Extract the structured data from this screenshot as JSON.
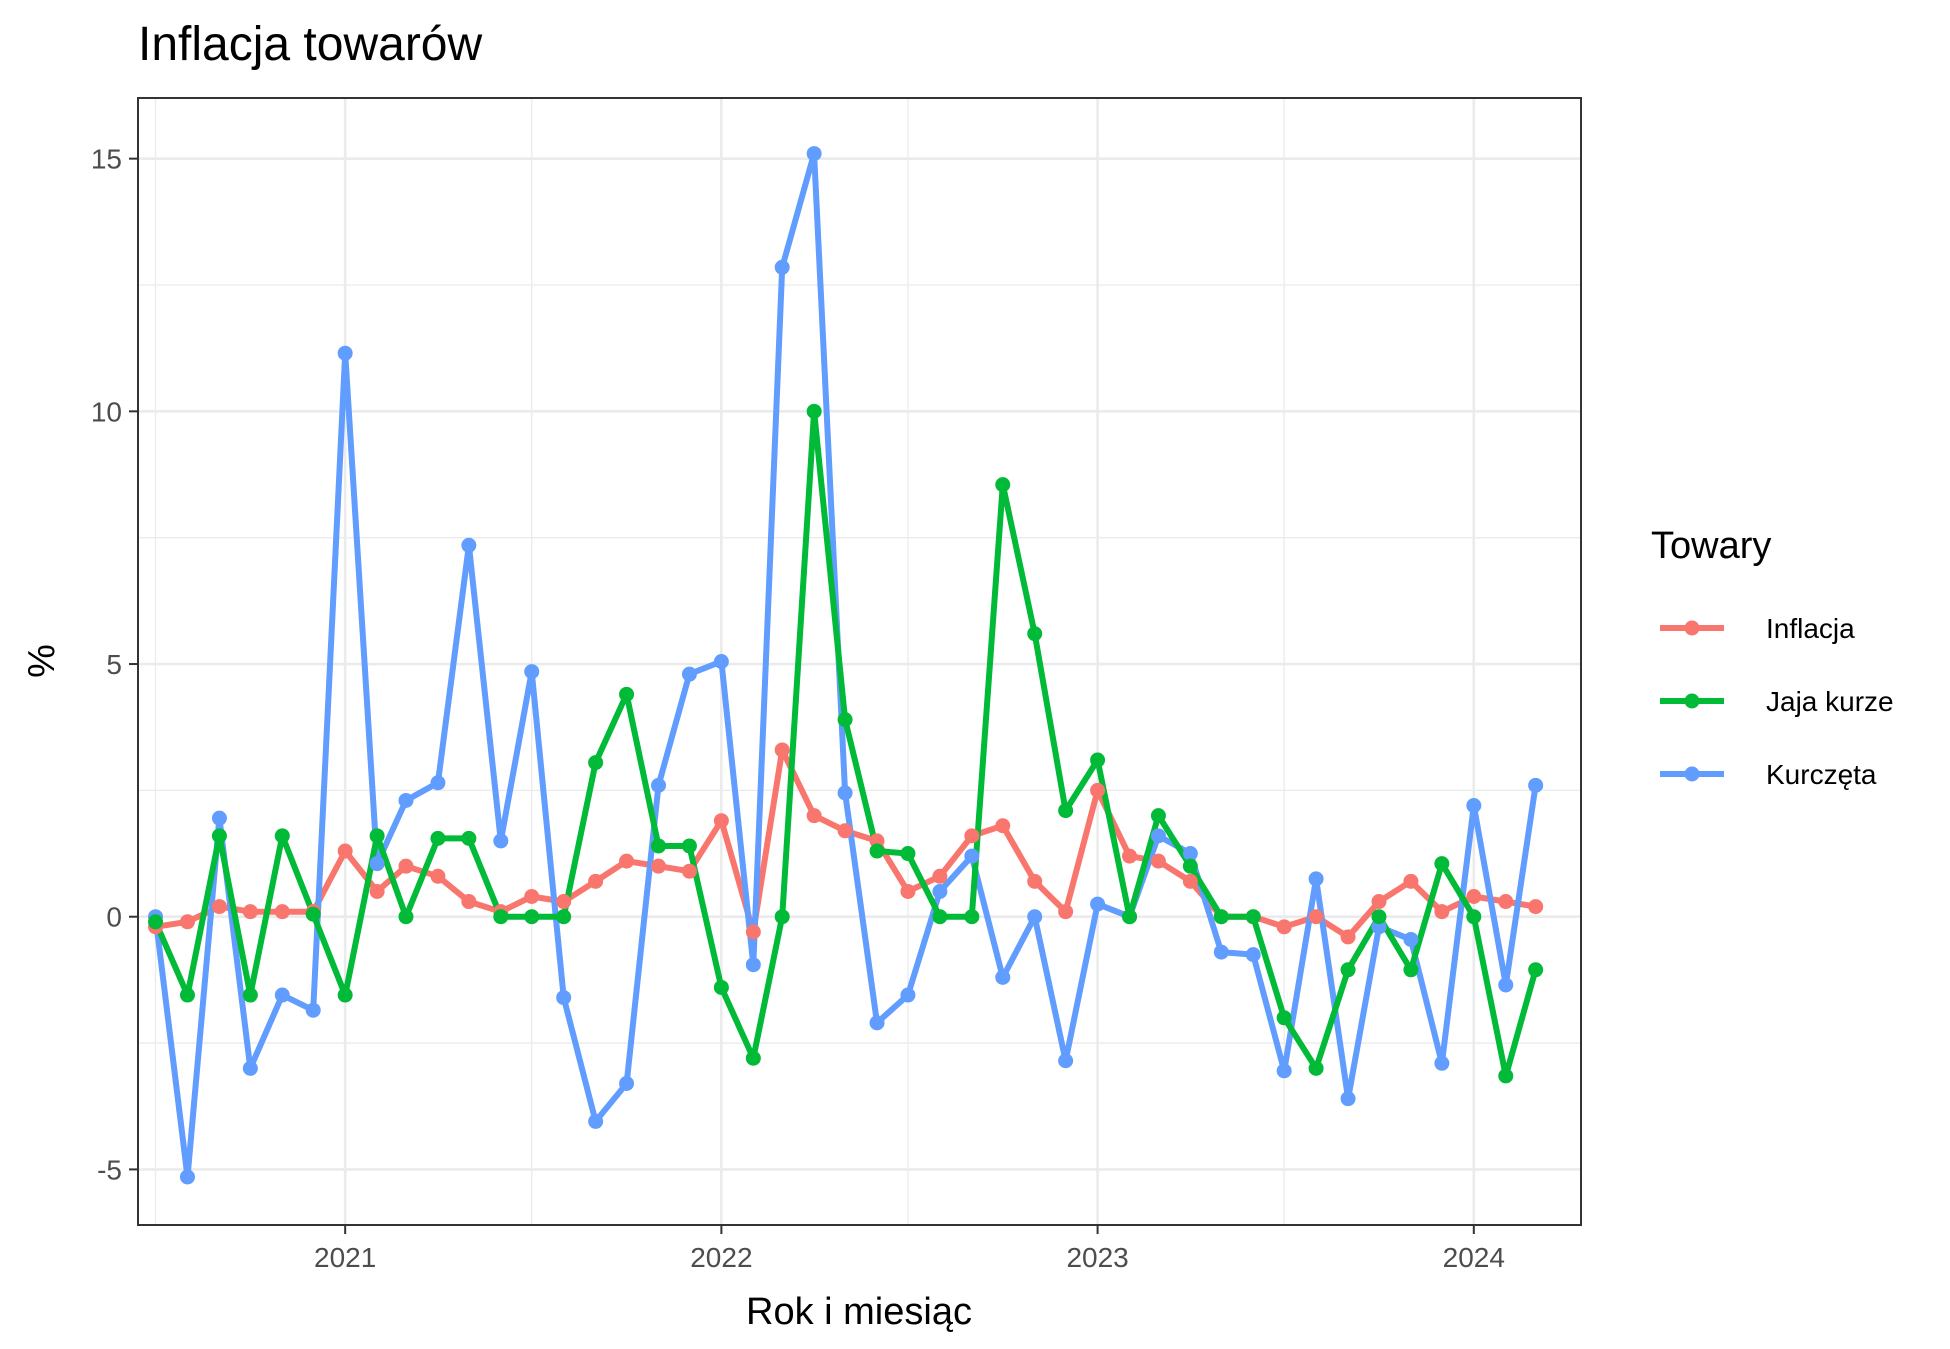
{
  "chart_data": {
    "type": "line",
    "title": "Inflacja towarów",
    "xlabel": "Rok i miesiąc",
    "ylabel": "%",
    "x_axis": "date (monthly)",
    "xlim": [
      "2020-06-14",
      "2024-04-14"
    ],
    "ylim": [
      -6.1,
      16.2
    ],
    "x_ticks": [
      "2021",
      "2022",
      "2023",
      "2024"
    ],
    "y_ticks": [
      -5,
      0,
      5,
      10,
      15
    ],
    "y_tick_labels": [
      "-5",
      "0",
      "5",
      "10",
      "15"
    ],
    "grid": true,
    "legend": {
      "title": "Towary",
      "position": "right"
    },
    "x": [
      "2020-07",
      "2020-08",
      "2020-09",
      "2020-10",
      "2020-11",
      "2020-12",
      "2021-01",
      "2021-02",
      "2021-03",
      "2021-04",
      "2021-05",
      "2021-06",
      "2021-07",
      "2021-08",
      "2021-09",
      "2021-10",
      "2021-11",
      "2021-12",
      "2022-01",
      "2022-02",
      "2022-03",
      "2022-04",
      "2022-05",
      "2022-06",
      "2022-07",
      "2022-08",
      "2022-09",
      "2022-10",
      "2022-11",
      "2022-12",
      "2023-01",
      "2023-02",
      "2023-03",
      "2023-04",
      "2023-05",
      "2023-06",
      "2023-07",
      "2023-08",
      "2023-09",
      "2023-10",
      "2023-11",
      "2023-12",
      "2024-01",
      "2024-02",
      "2024-03"
    ],
    "series": [
      {
        "name": "Inflacja",
        "color": "#F8766D",
        "values": [
          -0.2,
          -0.1,
          0.2,
          0.1,
          0.1,
          0.1,
          1.3,
          0.5,
          1.0,
          0.8,
          0.3,
          0.1,
          0.4,
          0.3,
          0.7,
          1.1,
          1.0,
          0.9,
          1.9,
          -0.3,
          3.3,
          2.0,
          1.7,
          1.5,
          0.5,
          0.8,
          1.6,
          1.8,
          0.7,
          0.1,
          2.5,
          1.2,
          1.1,
          0.7,
          0.0,
          0.0,
          -0.2,
          0.0,
          -0.4,
          0.3,
          0.7,
          0.1,
          0.4,
          0.3,
          0.2
        ]
      },
      {
        "name": "Jaja kurze",
        "color": "#00BA38",
        "values": [
          -0.1,
          -1.55,
          1.6,
          -1.55,
          1.6,
          0.05,
          -1.55,
          1.6,
          0.0,
          1.55,
          1.55,
          0.0,
          0.0,
          0.0,
          3.05,
          4.4,
          1.4,
          1.4,
          -1.4,
          -2.8,
          0.0,
          10.0,
          3.9,
          1.3,
          1.25,
          0.0,
          0.0,
          8.55,
          5.6,
          2.1,
          3.1,
          0.0,
          2.0,
          1.0,
          0.0,
          0.0,
          -2.0,
          -3.0,
          -1.05,
          0.0,
          -1.05,
          1.05,
          0.0,
          -3.15,
          -1.05
        ]
      },
      {
        "name": "Kurczęta",
        "color": "#619CFF",
        "values": [
          0.0,
          -5.15,
          1.95,
          -3.0,
          -1.55,
          -1.85,
          11.15,
          1.05,
          2.3,
          2.65,
          7.35,
          1.5,
          4.85,
          -1.6,
          -4.05,
          -3.3,
          2.6,
          4.8,
          5.05,
          -0.95,
          12.85,
          15.1,
          2.45,
          -2.1,
          -1.55,
          0.5,
          1.2,
          -1.2,
          0.0,
          -2.85,
          0.25,
          0.0,
          1.6,
          1.25,
          -0.7,
          -0.75,
          -3.05,
          0.75,
          -3.6,
          -0.2,
          -0.45,
          -2.9,
          2.2,
          -1.35,
          2.6
        ]
      }
    ]
  }
}
